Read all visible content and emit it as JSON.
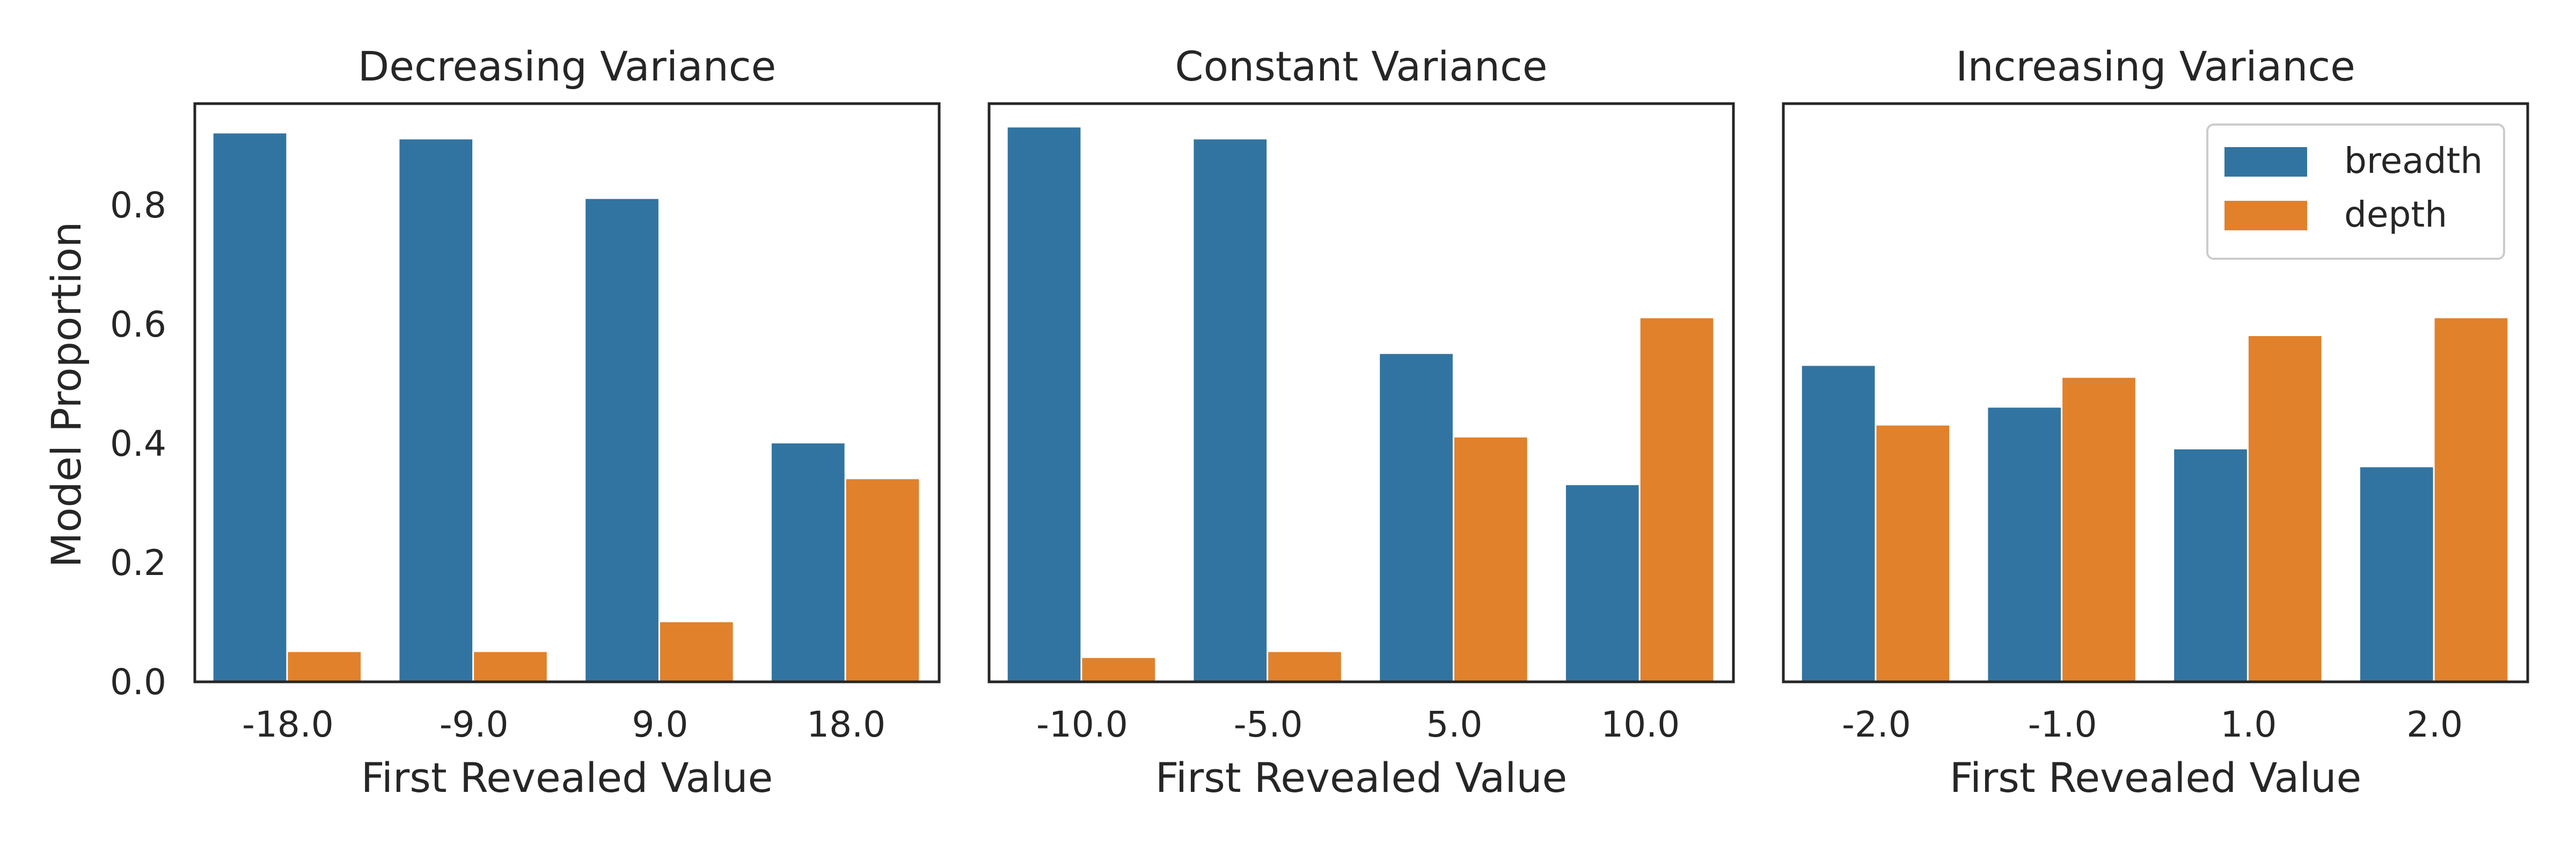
{
  "chart_data": {
    "type": "bar",
    "ylabel": "Model Proportion",
    "ylim": [
      0,
      0.97
    ],
    "yticks": [
      0.0,
      0.2,
      0.4,
      0.6,
      0.8
    ],
    "grid": false,
    "legend": {
      "placement": "top-right",
      "panel": 2,
      "entries": [
        {
          "name": "breadth",
          "color": "#3274a1"
        },
        {
          "name": "depth",
          "color": "#e1812c"
        }
      ]
    },
    "panels": [
      {
        "title": "Decreasing Variance",
        "xlabel": "First Revealed Value",
        "categories": [
          "-18.0",
          "-9.0",
          "9.0",
          "18.0"
        ],
        "series": [
          {
            "name": "breadth",
            "values": [
              0.92,
              0.91,
              0.81,
              0.4
            ]
          },
          {
            "name": "depth",
            "values": [
              0.05,
              0.05,
              0.1,
              0.34
            ]
          }
        ]
      },
      {
        "title": "Constant Variance",
        "xlabel": "First Revealed Value",
        "categories": [
          "-10.0",
          "-5.0",
          "5.0",
          "10.0"
        ],
        "series": [
          {
            "name": "breadth",
            "values": [
              0.93,
              0.91,
              0.55,
              0.33
            ]
          },
          {
            "name": "depth",
            "values": [
              0.04,
              0.05,
              0.41,
              0.61
            ]
          }
        ]
      },
      {
        "title": "Increasing Variance",
        "xlabel": "First Revealed Value",
        "categories": [
          "-2.0",
          "-1.0",
          "1.0",
          "2.0"
        ],
        "series": [
          {
            "name": "breadth",
            "values": [
              0.53,
              0.46,
              0.39,
              0.36
            ]
          },
          {
            "name": "depth",
            "values": [
              0.43,
              0.51,
              0.58,
              0.61
            ]
          }
        ]
      }
    ]
  }
}
